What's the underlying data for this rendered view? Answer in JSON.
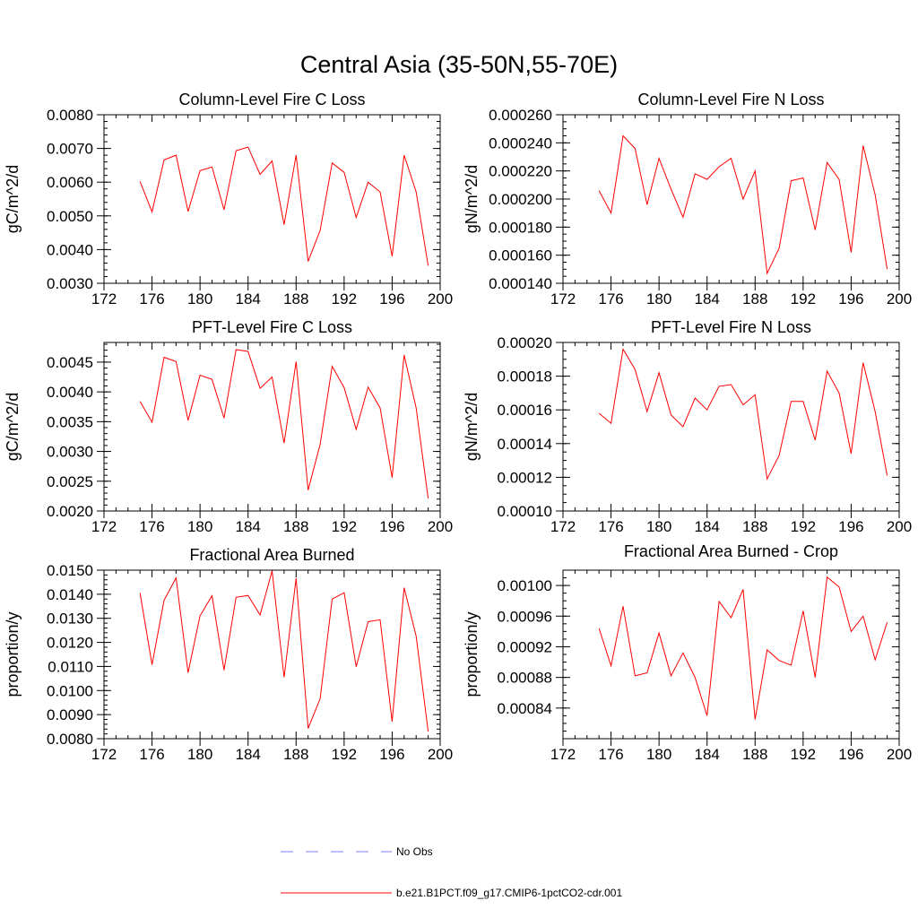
{
  "title": "Central Asia (35-50N,55-70E)",
  "chart_data": [
    {
      "type": "line",
      "title": "Column-Level Fire C Loss",
      "ylabel": "gC/m^2/d",
      "xlim": [
        172,
        200
      ],
      "ylim": [
        0.003,
        0.008
      ],
      "xticks": [
        172,
        176,
        180,
        184,
        188,
        192,
        196,
        200
      ],
      "xtick_labels": [
        "172",
        "176",
        "180",
        "184",
        "188",
        "192",
        "196",
        "200"
      ],
      "yticks": [
        0.003,
        0.004,
        0.005,
        0.006,
        0.007,
        0.008
      ],
      "ytick_labels": [
        "0.0030",
        "0.0040",
        "0.0050",
        "0.0060",
        "0.0070",
        "0.0080"
      ],
      "yminor": 0.0002,
      "series": [
        {
          "x": [
            175,
            176,
            177,
            178,
            179,
            180,
            181,
            182,
            183,
            184,
            185,
            186,
            187,
            188,
            189,
            190,
            191,
            192,
            193,
            194,
            195,
            196,
            197,
            198,
            199
          ],
          "values": [
            0.00602,
            0.00512,
            0.00666,
            0.0068,
            0.00513,
            0.00634,
            0.00645,
            0.00518,
            0.00693,
            0.00704,
            0.00623,
            0.00663,
            0.00474,
            0.0068,
            0.00365,
            0.00457,
            0.00657,
            0.00629,
            0.00495,
            0.006,
            0.00571,
            0.0038,
            0.0068,
            0.00571,
            0.00352
          ]
        }
      ]
    },
    {
      "type": "line",
      "title": "Column-Level Fire N Loss",
      "ylabel": "gN/m^2/d",
      "xlim": [
        172,
        200
      ],
      "ylim": [
        0.00014,
        0.00026
      ],
      "xticks": [
        172,
        176,
        180,
        184,
        188,
        192,
        196,
        200
      ],
      "xtick_labels": [
        "172",
        "176",
        "180",
        "184",
        "188",
        "192",
        "196",
        "200"
      ],
      "yticks": [
        0.00014,
        0.00016,
        0.00018,
        0.0002,
        0.00022,
        0.00024,
        0.00026
      ],
      "ytick_labels": [
        "0.000140",
        "0.000160",
        "0.000180",
        "0.000200",
        "0.000220",
        "0.000240",
        "0.000260"
      ],
      "yminor": 5e-06,
      "series": [
        {
          "x": [
            175,
            176,
            177,
            178,
            179,
            180,
            181,
            182,
            183,
            184,
            185,
            186,
            187,
            188,
            189,
            190,
            191,
            192,
            193,
            194,
            195,
            196,
            197,
            198,
            199
          ],
          "values": [
            0.000206,
            0.00019,
            0.000245,
            0.000236,
            0.000196,
            0.000229,
            0.000207,
            0.000187,
            0.000218,
            0.000214,
            0.000223,
            0.000229,
            0.0002,
            0.00022,
            0.000147,
            0.000165,
            0.000213,
            0.000215,
            0.000178,
            0.000226,
            0.000214,
            0.000162,
            0.000238,
            0.000203,
            0.00015
          ]
        }
      ]
    },
    {
      "type": "line",
      "title": "PFT-Level Fire C Loss",
      "ylabel": "gC/m^2/d",
      "xlim": [
        172,
        200
      ],
      "ylim": [
        0.002,
        0.00483
      ],
      "xticks": [
        172,
        176,
        180,
        184,
        188,
        192,
        196,
        200
      ],
      "xtick_labels": [
        "172",
        "176",
        "180",
        "184",
        "188",
        "192",
        "196",
        "200"
      ],
      "yticks": [
        0.002,
        0.0025,
        0.003,
        0.0035,
        0.004,
        0.0045
      ],
      "ytick_labels": [
        "0.0020",
        "0.0025",
        "0.0030",
        "0.0035",
        "0.0040",
        "0.0045"
      ],
      "yminor": 0.0001,
      "series": [
        {
          "x": [
            175,
            176,
            177,
            178,
            179,
            180,
            181,
            182,
            183,
            184,
            185,
            186,
            187,
            188,
            189,
            190,
            191,
            192,
            193,
            194,
            195,
            196,
            197,
            198,
            199
          ],
          "values": [
            0.00384,
            0.00349,
            0.00458,
            0.00451,
            0.00352,
            0.00428,
            0.00421,
            0.00356,
            0.00471,
            0.00468,
            0.00406,
            0.00425,
            0.00314,
            0.00451,
            0.00235,
            0.00312,
            0.00443,
            0.00407,
            0.00337,
            0.00408,
            0.00373,
            0.00256,
            0.00462,
            0.00373,
            0.00221
          ]
        }
      ]
    },
    {
      "type": "line",
      "title": "PFT-Level Fire N Loss",
      "ylabel": "gN/m^2/d",
      "xlim": [
        172,
        200
      ],
      "ylim": [
        0.0001,
        0.0002
      ],
      "xticks": [
        172,
        176,
        180,
        184,
        188,
        192,
        196,
        200
      ],
      "xtick_labels": [
        "172",
        "176",
        "180",
        "184",
        "188",
        "192",
        "196",
        "200"
      ],
      "yticks": [
        0.0001,
        0.00012,
        0.00014,
        0.00016,
        0.00018,
        0.0002
      ],
      "ytick_labels": [
        "0.00010",
        "0.00012",
        "0.00014",
        "0.00016",
        "0.00018",
        "0.00020"
      ],
      "yminor": 5e-06,
      "series": [
        {
          "x": [
            175,
            176,
            177,
            178,
            179,
            180,
            181,
            182,
            183,
            184,
            185,
            186,
            187,
            188,
            189,
            190,
            191,
            192,
            193,
            194,
            195,
            196,
            197,
            198,
            199
          ],
          "values": [
            0.000158,
            0.000152,
            0.000196,
            0.000184,
            0.000159,
            0.000182,
            0.000157,
            0.00015,
            0.000167,
            0.00016,
            0.000174,
            0.000175,
            0.000163,
            0.000169,
            0.000119,
            0.000133,
            0.000165,
            0.000165,
            0.000142,
            0.000183,
            0.00017,
            0.000134,
            0.000188,
            0.000159,
            0.000121
          ]
        }
      ]
    },
    {
      "type": "line",
      "title": "Fractional Area Burned",
      "ylabel": "proportion/y",
      "xlim": [
        172,
        200
      ],
      "ylim": [
        0.008,
        0.015
      ],
      "xticks": [
        172,
        176,
        180,
        184,
        188,
        192,
        196,
        200
      ],
      "xtick_labels": [
        "172",
        "176",
        "180",
        "184",
        "188",
        "192",
        "196",
        "200"
      ],
      "yticks": [
        0.008,
        0.009,
        0.01,
        0.011,
        0.012,
        0.013,
        0.014,
        0.015
      ],
      "ytick_labels": [
        "0.0080",
        "0.0090",
        "0.0100",
        "0.0110",
        "0.0120",
        "0.0130",
        "0.0140",
        "0.0150"
      ],
      "yminor": 0.0002,
      "series": [
        {
          "x": [
            175,
            176,
            177,
            178,
            179,
            180,
            181,
            182,
            183,
            184,
            185,
            186,
            187,
            188,
            189,
            190,
            191,
            192,
            193,
            194,
            195,
            196,
            197,
            198,
            199
          ],
          "values": [
            0.01405,
            0.01107,
            0.01375,
            0.01468,
            0.01074,
            0.0131,
            0.01394,
            0.01085,
            0.01387,
            0.01395,
            0.01314,
            0.01497,
            0.01055,
            0.01466,
            0.00843,
            0.00966,
            0.0138,
            0.01406,
            0.01099,
            0.01286,
            0.01294,
            0.00871,
            0.01427,
            0.01226,
            0.0083
          ]
        }
      ]
    },
    {
      "type": "line",
      "title": "Fractional Area Burned - Crop",
      "ylabel": "proportion/y",
      "xlim": [
        172,
        200
      ],
      "ylim": [
        0.0008,
        0.00102
      ],
      "xticks": [
        172,
        176,
        180,
        184,
        188,
        192,
        196,
        200
      ],
      "xtick_labels": [
        "172",
        "176",
        "180",
        "184",
        "188",
        "192",
        "196",
        "200"
      ],
      "yticks": [
        0.00084,
        0.00088,
        0.00092,
        0.00096,
        0.001
      ],
      "ytick_labels": [
        "0.00084",
        "0.00088",
        "0.00092",
        "0.00096",
        "0.00100"
      ],
      "yminor": 1e-05,
      "series": [
        {
          "x": [
            175,
            176,
            177,
            178,
            179,
            180,
            181,
            182,
            183,
            184,
            185,
            186,
            187,
            188,
            189,
            190,
            191,
            192,
            193,
            194,
            195,
            196,
            197,
            198,
            199
          ],
          "values": [
            0.000944,
            0.000895,
            0.000973,
            0.000882,
            0.000886,
            0.000938,
            0.000882,
            0.000912,
            0.00088,
            0.00083,
            0.000979,
            0.000958,
            0.000995,
            0.000825,
            0.000916,
            0.000902,
            0.000896,
            0.000967,
            0.00088,
            0.001011,
            0.000998,
            0.00094,
            0.00096,
            0.000903,
            0.000952
          ]
        }
      ]
    }
  ],
  "legend": [
    {
      "label": "No Obs",
      "color": "#8080ff",
      "style": "dashed"
    },
    {
      "label": "b.e21.B1PCT.f09_g17.CMIP6-1pctCO2-cdr.001",
      "color": "#ff0000",
      "style": "solid"
    }
  ]
}
